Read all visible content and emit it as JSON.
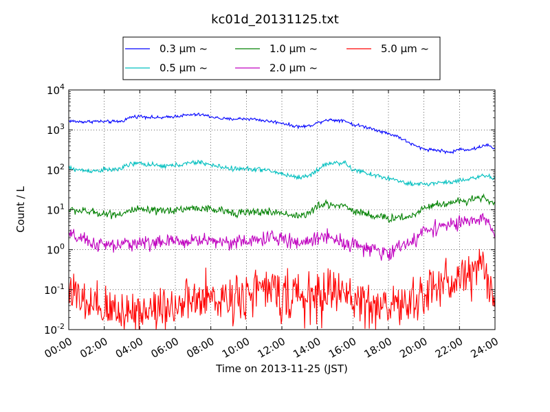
{
  "chart_data": {
    "type": "line",
    "title": "kc01d_20131125.txt",
    "xlabel": "Time on 2013-11-25 (JST)",
    "ylabel": "Count / L",
    "yscale": "log",
    "xlim": [
      0,
      24
    ],
    "ylim": [
      0.01,
      10000
    ],
    "grid": true,
    "legend_position": "top",
    "x_ticks": [
      "00:00",
      "02:00",
      "04:00",
      "06:00",
      "08:00",
      "10:00",
      "12:00",
      "14:00",
      "16:00",
      "18:00",
      "20:00",
      "22:00",
      "24:00"
    ],
    "y_ticks": [
      {
        "base": "10",
        "exp": "-2",
        "value": 0.01
      },
      {
        "base": "10",
        "exp": "-1",
        "value": 0.1
      },
      {
        "base": "10",
        "exp": "0",
        "value": 1
      },
      {
        "base": "10",
        "exp": "1",
        "value": 10
      },
      {
        "base": "10",
        "exp": "2",
        "value": 100
      },
      {
        "base": "10",
        "exp": "3",
        "value": 1000
      },
      {
        "base": "10",
        "exp": "4",
        "value": 10000
      }
    ],
    "series": [
      {
        "name": "0.3 μm ~",
        "color": "#0000ff",
        "noise": 0.02,
        "x": [
          0,
          0.5,
          1,
          1.5,
          2,
          2.5,
          3,
          3.5,
          4,
          4.5,
          5,
          5.5,
          6,
          6.5,
          7,
          7.5,
          8,
          8.5,
          9,
          9.5,
          10,
          10.5,
          11,
          11.5,
          12,
          12.5,
          13,
          13.5,
          14,
          14.5,
          15,
          15.5,
          16,
          16.5,
          17,
          17.5,
          18,
          18.5,
          19,
          19.5,
          20,
          20.5,
          21,
          21.5,
          22,
          22.5,
          23,
          23.5,
          24
        ],
        "y": [
          1700,
          1600,
          1600,
          1650,
          1600,
          1600,
          1650,
          2100,
          2200,
          2100,
          2000,
          2050,
          2200,
          2300,
          2400,
          2400,
          2150,
          1950,
          1850,
          1900,
          1900,
          1850,
          1700,
          1600,
          1500,
          1300,
          1200,
          1250,
          1500,
          1800,
          1750,
          1750,
          1350,
          1250,
          1100,
          950,
          800,
          700,
          520,
          400,
          330,
          320,
          300,
          270,
          330,
          320,
          350,
          430,
          330
        ]
      },
      {
        "name": "0.5 μm ~",
        "color": "#00bfbf",
        "noise": 0.03,
        "x": [
          0,
          0.5,
          1,
          1.5,
          2,
          2.5,
          3,
          3.5,
          4,
          4.5,
          5,
          5.5,
          6,
          6.5,
          7,
          7.5,
          8,
          8.5,
          9,
          9.5,
          10,
          10.5,
          11,
          11.5,
          12,
          12.5,
          13,
          13.5,
          14,
          14.5,
          15,
          15.5,
          16,
          16.5,
          17,
          17.5,
          18,
          18.5,
          19,
          19.5,
          20,
          20.5,
          21,
          21.5,
          22,
          22.5,
          23,
          23.5,
          24
        ],
        "y": [
          110,
          100,
          95,
          95,
          100,
          100,
          110,
          140,
          145,
          135,
          125,
          125,
          130,
          140,
          150,
          155,
          130,
          120,
          110,
          105,
          105,
          105,
          100,
          90,
          80,
          70,
          65,
          70,
          100,
          140,
          150,
          150,
          100,
          90,
          75,
          70,
          60,
          55,
          45,
          42,
          45,
          45,
          50,
          48,
          55,
          60,
          65,
          70,
          60
        ]
      },
      {
        "name": "1.0 μm ~",
        "color": "#008000",
        "noise": 0.05,
        "x": [
          0,
          0.5,
          1,
          1.5,
          2,
          2.5,
          3,
          3.5,
          4,
          4.5,
          5,
          5.5,
          6,
          6.5,
          7,
          7.5,
          8,
          8.5,
          9,
          9.5,
          10,
          10.5,
          11,
          11.5,
          12,
          12.5,
          13,
          13.5,
          14,
          14.5,
          15,
          15.5,
          16,
          16.5,
          17,
          17.5,
          18,
          18.5,
          19,
          19.5,
          20,
          20.5,
          21,
          21.5,
          22,
          22.5,
          23,
          23.5,
          24
        ],
        "y": [
          10,
          9.5,
          9,
          8.5,
          8,
          7.8,
          8,
          9.5,
          10,
          9.5,
          9,
          9.5,
          10,
          10.5,
          11,
          11,
          10,
          9.5,
          9,
          8.5,
          8.5,
          8.5,
          9,
          8.5,
          8.5,
          7.5,
          7,
          8,
          12,
          14,
          13,
          13,
          9.5,
          8.5,
          7.5,
          6.5,
          6,
          6.5,
          6.5,
          7.5,
          12,
          13,
          14,
          15,
          16,
          18,
          20,
          20,
          13
        ]
      },
      {
        "name": "2.0 μm ~",
        "color": "#bf00bf",
        "noise": 0.09,
        "x": [
          0,
          0.5,
          1,
          1.5,
          2,
          2.5,
          3,
          3.5,
          4,
          4.5,
          5,
          5.5,
          6,
          6.5,
          7,
          7.5,
          8,
          8.5,
          9,
          9.5,
          10,
          10.5,
          11,
          11.5,
          12,
          12.5,
          13,
          13.5,
          14,
          14.5,
          15,
          15.5,
          16,
          16.5,
          17,
          17.5,
          18,
          18.5,
          19,
          19.5,
          20,
          20.5,
          21,
          21.5,
          22,
          22.5,
          23,
          23.5,
          24
        ],
        "y": [
          2.3,
          2,
          1.6,
          1.4,
          1.3,
          1.25,
          1.3,
          1.5,
          1.5,
          1.5,
          1.5,
          1.55,
          1.6,
          1.6,
          1.7,
          1.75,
          1.7,
          1.6,
          1.6,
          1.55,
          1.6,
          1.7,
          1.9,
          2,
          1.8,
          1.6,
          1.5,
          1.6,
          2,
          2.3,
          1.9,
          1.5,
          1.4,
          1.2,
          1,
          0.85,
          0.8,
          1.1,
          1.5,
          1.6,
          3.2,
          3.5,
          4,
          4.2,
          4.5,
          5,
          5.5,
          5.5,
          2.5
        ]
      },
      {
        "name": "5.0 μm ~",
        "color": "#ff0000",
        "noise": 0.3,
        "x": [
          0,
          0.5,
          1,
          1.5,
          2,
          2.5,
          3,
          3.5,
          4,
          4.5,
          5,
          5.5,
          6,
          6.5,
          7,
          7.5,
          8,
          8.5,
          9,
          9.5,
          10,
          10.5,
          11,
          11.5,
          12,
          12.5,
          13,
          13.5,
          14,
          14.5,
          15,
          15.5,
          16,
          16.5,
          17,
          17.5,
          18,
          18.5,
          19,
          19.5,
          20,
          20.5,
          21,
          21.5,
          22,
          22.5,
          23,
          23.5,
          24
        ],
        "y": [
          0.15,
          0.05,
          0.04,
          0.03,
          0.03,
          0.03,
          0.03,
          0.03,
          0.03,
          0.03,
          0.035,
          0.04,
          0.04,
          0.04,
          0.05,
          0.05,
          0.06,
          0.06,
          0.06,
          0.07,
          0.08,
          0.1,
          0.1,
          0.09,
          0.08,
          0.07,
          0.06,
          0.06,
          0.06,
          0.08,
          0.1,
          0.08,
          0.06,
          0.05,
          0.04,
          0.04,
          0.04,
          0.04,
          0.04,
          0.05,
          0.08,
          0.1,
          0.15,
          0.15,
          0.2,
          0.25,
          0.35,
          0.35,
          0.05
        ]
      }
    ]
  }
}
